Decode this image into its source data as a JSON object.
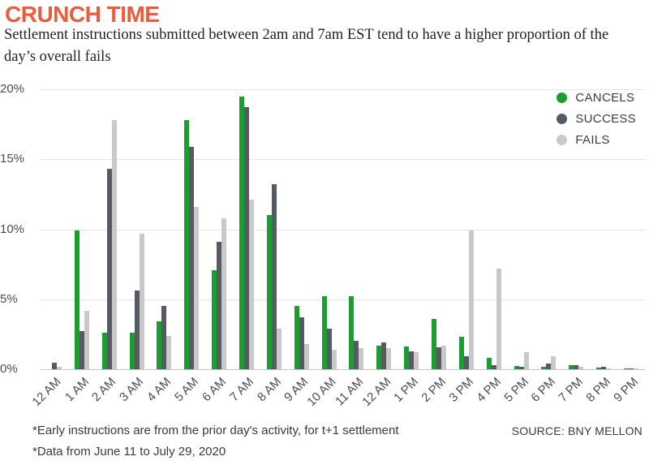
{
  "header": {
    "title": "CRUNCH TIME",
    "subtitle": "Settlement instructions submitted between 2am and 7am EST tend to have a higher proportion of the day’s overall fails"
  },
  "colors": {
    "title_orange": "#ec5b3c",
    "cancels_green": "#1b9e30",
    "success_gray": "#565b63",
    "fails_lightgray": "#c9c9c9",
    "gridline": "#e4e4e4",
    "axis_line": "#c6c6c6",
    "axis_text": "#4c4c4c"
  },
  "chart_data": {
    "type": "bar",
    "title": "CRUNCH TIME",
    "subtitle": "Settlement instructions submitted between 2am and 7am EST tend to have a higher proportion of the day’s overall fails",
    "xlabel": "",
    "ylabel": "",
    "unit": "percent",
    "ylim": [
      0,
      20
    ],
    "y_ticks": [
      "20%",
      "15%",
      "10%",
      "5%",
      "0%"
    ],
    "grid": true,
    "legend_position": "top-right",
    "categories": [
      "12 AM",
      "1 AM",
      "2 AM",
      "3 AM",
      "4 AM",
      "5 AM",
      "6 AM",
      "7 AM",
      "8 AM",
      "9 AM",
      "10 AM",
      "11 AM",
      "12 AM",
      "1 PM",
      "2 PM",
      "3 PM",
      "4 PM",
      "5 PM",
      "6 PM",
      "7 PM",
      "8 PM",
      "9 PM"
    ],
    "series": [
      {
        "name": "CANCELS",
        "color": "#1b9e30",
        "values": [
          0,
          9.9,
          2.6,
          2.6,
          3.4,
          17.8,
          7.1,
          19.5,
          11.0,
          4.5,
          5.2,
          5.2,
          1.7,
          1.6,
          3.6,
          2.3,
          0.8,
          0.25,
          0.2,
          0.3,
          0.12,
          0.05
        ]
      },
      {
        "name": "SUCCESS",
        "color": "#565b63",
        "values": [
          0.45,
          2.7,
          14.3,
          5.6,
          4.5,
          15.9,
          9.1,
          18.7,
          13.2,
          3.7,
          2.9,
          2.0,
          1.9,
          1.3,
          1.55,
          0.9,
          0.3,
          0.15,
          0.4,
          0.3,
          0.15,
          0.03
        ]
      },
      {
        "name": "FAILS",
        "color": "#c9c9c9",
        "values": [
          0.15,
          4.2,
          17.8,
          9.7,
          2.4,
          11.6,
          10.8,
          12.1,
          2.9,
          1.8,
          1.4,
          1.5,
          1.5,
          1.2,
          1.7,
          9.9,
          7.2,
          1.2,
          0.9,
          0.15,
          0.05,
          0.08
        ]
      }
    ]
  },
  "footer": {
    "note1": "*Early instructions are from the prior day's activity, for t+1 settlement",
    "note2": "*Data from June 11 to July 29, 2020",
    "source": "SOURCE: BNY MELLON"
  }
}
